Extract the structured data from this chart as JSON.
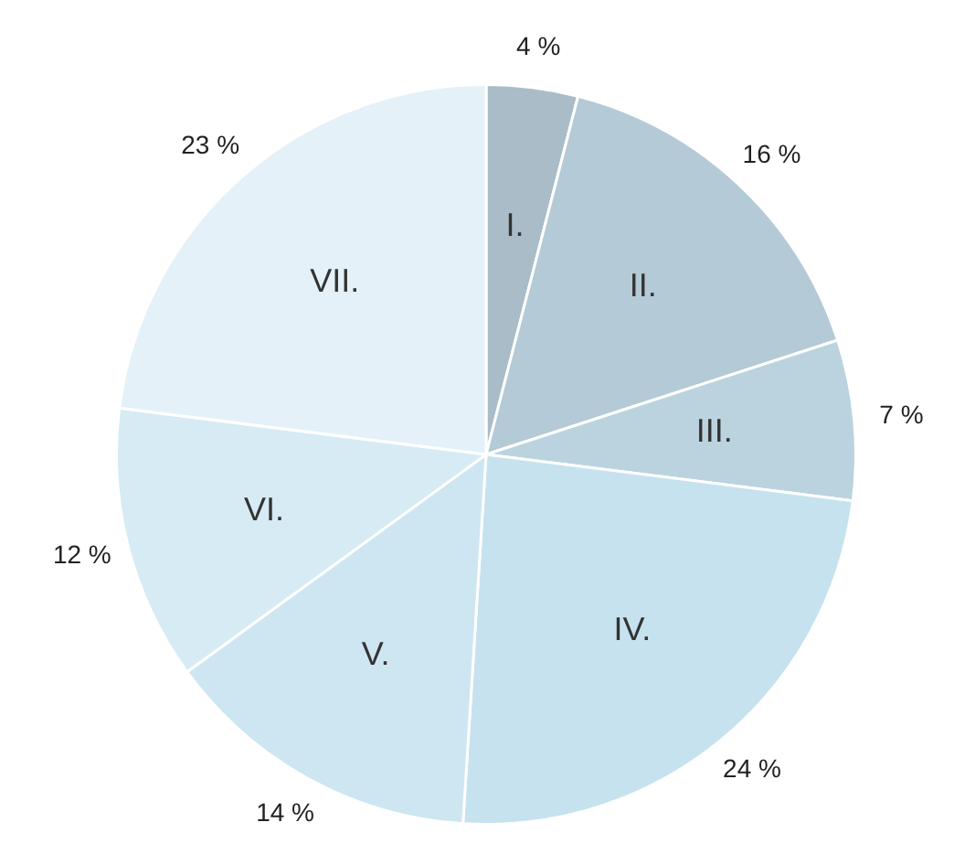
{
  "chart_data": {
    "type": "pie",
    "categories": [
      "I.",
      "II.",
      "III.",
      "IV.",
      "V.",
      "VI.",
      "VII."
    ],
    "values": [
      4,
      16,
      7,
      24,
      14,
      12,
      23
    ],
    "value_labels": [
      "4 %",
      "16 %",
      "7 %",
      "24 %",
      "14 %",
      "12 %",
      "23 %"
    ],
    "colors": [
      "#a9bcc8",
      "#b4cad6",
      "#bad3df",
      "#c6e2ef",
      "#cde6f2",
      "#d6ebf4",
      "#e4f1f8"
    ],
    "legend": false
  }
}
